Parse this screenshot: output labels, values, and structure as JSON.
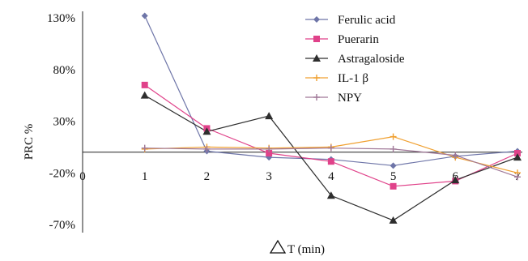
{
  "chart_data": {
    "type": "line",
    "xlabel": "T (min)",
    "ylabel": "PRC %",
    "x": [
      0,
      1,
      2,
      3,
      4,
      5,
      6,
      7
    ],
    "x_ticks": [
      "0",
      "1",
      "2",
      "3",
      "4",
      "5",
      "6",
      "7"
    ],
    "y_ticks": [
      "130%",
      "80%",
      "30%",
      "-20%",
      "-70%"
    ],
    "y_tick_values": [
      130,
      80,
      30,
      -20,
      -70
    ],
    "ylim": [
      -70,
      130
    ],
    "xlim": [
      0,
      7
    ],
    "legend_position": "top-right",
    "series": [
      {
        "name": "Ferulic acid",
        "color": "#6e75a8",
        "marker": "diamond",
        "x": [
          1,
          2,
          3,
          4,
          5,
          6,
          7
        ],
        "values": [
          132,
          1,
          -5,
          -7,
          -13,
          -4,
          1
        ]
      },
      {
        "name": "Puerarin",
        "color": "#e0428a",
        "marker": "square",
        "x": [
          1,
          2,
          3,
          4,
          5,
          6,
          7
        ],
        "values": [
          65,
          23,
          -1,
          -9,
          -33,
          -28,
          -1
        ]
      },
      {
        "name": "Astragaloside",
        "color": "#2e2e2e",
        "marker": "triangle",
        "x": [
          1,
          2,
          3,
          4,
          5,
          6,
          7
        ],
        "values": [
          55,
          20,
          35,
          -42,
          -66,
          -27,
          -5
        ]
      },
      {
        "name": "IL-1 β",
        "color": "#f0a030",
        "marker": "cross",
        "x": [
          1,
          2,
          3,
          4,
          5,
          6,
          7
        ],
        "values": [
          3,
          5,
          4,
          5,
          15,
          -5,
          -20
        ]
      },
      {
        "name": "NPY",
        "color": "#a07898",
        "marker": "cross",
        "x": [
          1,
          2,
          3,
          4,
          5,
          6,
          7
        ],
        "values": [
          4,
          3,
          3,
          4,
          3,
          -3,
          -24
        ]
      }
    ]
  }
}
